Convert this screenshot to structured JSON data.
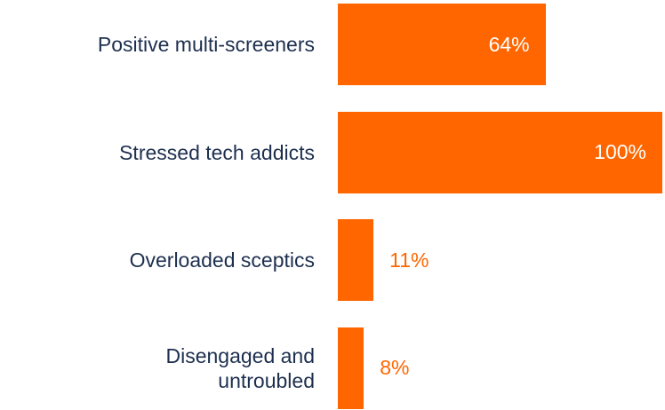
{
  "chart_data": {
    "type": "bar",
    "orientation": "horizontal",
    "categories": [
      "Positive multi-screeners",
      "Stressed tech addicts",
      "Overloaded sceptics",
      "Disengaged and untroubled"
    ],
    "values": [
      64,
      100,
      11,
      8
    ],
    "value_labels": [
      "64%",
      "100%",
      "11%",
      "8%"
    ],
    "color": "#ff6600",
    "xlim": [
      0,
      100
    ]
  }
}
